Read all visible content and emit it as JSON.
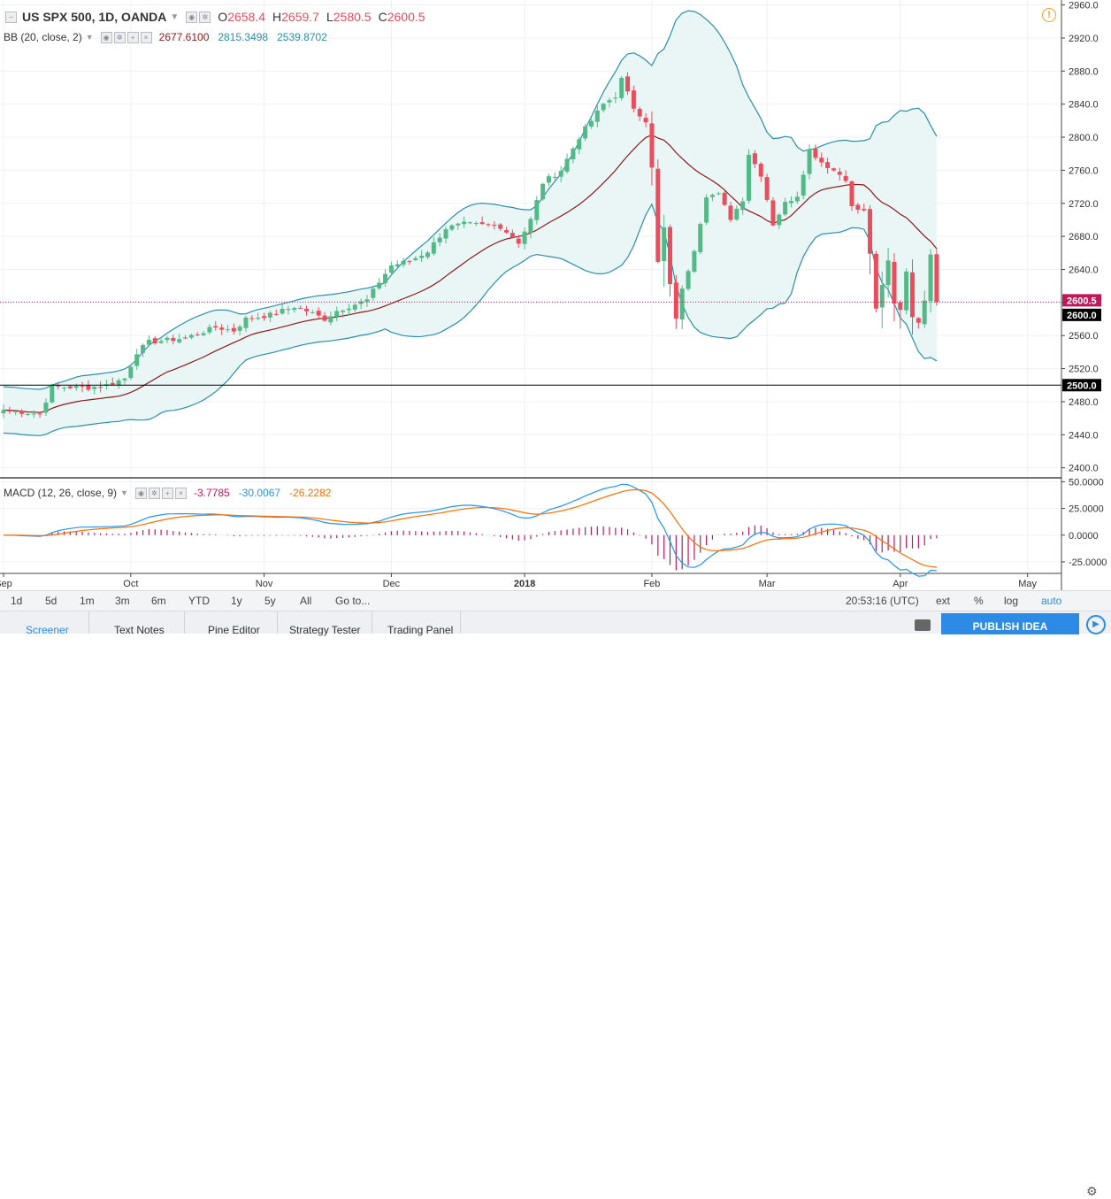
{
  "header": {
    "symbol": "US SPX 500, 1D, OANDA",
    "o_label": "O",
    "o_value": "2658.4",
    "h_label": "H",
    "h_value": "2659.7",
    "l_label": "L",
    "l_value": "2580.5",
    "c_label": "C",
    "c_value": "2600.5"
  },
  "bb_legend": {
    "name": "BB (20, close, 2)",
    "basis": "2677.6100",
    "upper": "2815.3498",
    "lower": "2539.8702"
  },
  "macd_legend": {
    "name": "MACD (12, 26, close, 9)",
    "hist": "-3.7785",
    "macd": "-30.0067",
    "signal": "-26.2282"
  },
  "colors": {
    "up": "#53b987",
    "down": "#eb4d5c",
    "bb_band": "#2a8fa8",
    "bb_basis": "#8b1a1a",
    "bb_fill": "#eaf6f6",
    "macd_line": "#2196f3",
    "signal_line": "#ff6d00",
    "histogram": "#c2185b",
    "price_line": "#c2185b"
  },
  "chart_data": [
    {
      "type": "candlestick",
      "title": "US SPX 500, 1D, OANDA",
      "y_ticks": [
        2400,
        2440,
        2480,
        2520,
        2560,
        2600,
        2640,
        2680,
        2720,
        2760,
        2800,
        2840,
        2880,
        2920,
        2960
      ],
      "y_tick_labels": [
        "2400.0",
        "2440.0",
        "2480.0",
        "2520.0",
        "2560.0",
        "2600.0",
        "2640.0",
        "2680.0",
        "2720.0",
        "2760.0",
        "2800.0",
        "2840.0",
        "2880.0",
        "2920.0",
        "2960.0"
      ],
      "ylim": [
        2390,
        2966
      ],
      "x_labels": [
        "Sep",
        "Oct",
        "Nov",
        "Dec",
        "2018",
        "Feb",
        "Mar",
        "Apr",
        "May"
      ],
      "x_label_index": [
        0,
        21,
        43,
        64,
        86,
        107,
        126,
        148,
        169
      ],
      "x_count": 173,
      "last_price": "2600.5",
      "horizontal_line": "2500.0",
      "horizontal_line_value": 2500,
      "milestones": [
        {
          "i": 0,
          "c": 2470
        },
        {
          "i": 6,
          "c": 2465
        },
        {
          "i": 8,
          "c": 2498
        },
        {
          "i": 14,
          "c": 2497
        },
        {
          "i": 17,
          "c": 2500
        },
        {
          "i": 20,
          "c": 2508
        },
        {
          "i": 22,
          "c": 2540
        },
        {
          "i": 24,
          "c": 2552
        },
        {
          "i": 30,
          "c": 2557
        },
        {
          "i": 35,
          "c": 2570
        },
        {
          "i": 38,
          "c": 2566
        },
        {
          "i": 40,
          "c": 2580
        },
        {
          "i": 44,
          "c": 2585
        },
        {
          "i": 48,
          "c": 2595
        },
        {
          "i": 50,
          "c": 2590
        },
        {
          "i": 53,
          "c": 2580
        },
        {
          "i": 55,
          "c": 2590
        },
        {
          "i": 60,
          "c": 2603
        },
        {
          "i": 62,
          "c": 2625
        },
        {
          "i": 64,
          "c": 2645
        },
        {
          "i": 67,
          "c": 2650
        },
        {
          "i": 70,
          "c": 2662
        },
        {
          "i": 73,
          "c": 2690
        },
        {
          "i": 76,
          "c": 2695
        },
        {
          "i": 82,
          "c": 2692
        },
        {
          "i": 85,
          "c": 2673
        },
        {
          "i": 87,
          "c": 2700
        },
        {
          "i": 89,
          "c": 2745
        },
        {
          "i": 92,
          "c": 2760
        },
        {
          "i": 95,
          "c": 2800
        },
        {
          "i": 99,
          "c": 2840
        },
        {
          "i": 101,
          "c": 2850
        },
        {
          "i": 102,
          "c": 2870
        },
        {
          "i": 104,
          "c": 2836
        },
        {
          "i": 106,
          "c": 2820
        },
        {
          "i": 107,
          "c": 2762
        },
        {
          "i": 108,
          "c": 2648
        },
        {
          "i": 109,
          "c": 2690
        },
        {
          "i": 110,
          "c": 2620
        },
        {
          "i": 111,
          "c": 2582
        },
        {
          "i": 112,
          "c": 2615
        },
        {
          "i": 114,
          "c": 2665
        },
        {
          "i": 116,
          "c": 2730
        },
        {
          "i": 118,
          "c": 2730
        },
        {
          "i": 120,
          "c": 2702
        },
        {
          "i": 122,
          "c": 2725
        },
        {
          "i": 123,
          "c": 2780
        },
        {
          "i": 125,
          "c": 2755
        },
        {
          "i": 127,
          "c": 2695
        },
        {
          "i": 129,
          "c": 2720
        },
        {
          "i": 131,
          "c": 2730
        },
        {
          "i": 133,
          "c": 2785
        },
        {
          "i": 135,
          "c": 2770
        },
        {
          "i": 137,
          "c": 2760
        },
        {
          "i": 139,
          "c": 2750
        },
        {
          "i": 140,
          "c": 2715
        },
        {
          "i": 142,
          "c": 2710
        },
        {
          "i": 143,
          "c": 2660
        },
        {
          "i": 144,
          "c": 2590
        },
        {
          "i": 146,
          "c": 2650
        },
        {
          "i": 147,
          "c": 2600
        },
        {
          "i": 148,
          "c": 2592
        },
        {
          "i": 149,
          "c": 2640
        },
        {
          "i": 150,
          "c": 2580
        },
        {
          "i": 151,
          "c": 2578
        },
        {
          "i": 152,
          "c": 2605
        },
        {
          "i": 153,
          "c": 2660
        },
        {
          "i": 154,
          "c": 2600.5
        }
      ]
    },
    {
      "type": "line",
      "title": "MACD (12, 26, close, 9)",
      "y_ticks": [
        -25,
        0,
        25,
        50
      ],
      "y_tick_labels": [
        "-25.0000",
        "0.0000",
        "25.0000",
        "50.0000"
      ],
      "ylim": [
        -35,
        52
      ]
    }
  ],
  "time_toolbar": {
    "ranges": [
      "1d",
      "5d",
      "1m",
      "3m",
      "6m",
      "YTD",
      "1y",
      "5y",
      "All"
    ],
    "goto": "Go to...",
    "clock": "20:53:16 (UTC)",
    "toggles": [
      "ext",
      "%",
      "log",
      "auto"
    ]
  },
  "bottom_tabs": [
    "Screener",
    "Text Notes",
    "Pine Editor",
    "Strategy Tester",
    "Trading Panel"
  ],
  "publish_button": "PUBLISH IDEA",
  "icons": {
    "alert": "alert-clock-icon",
    "camera": "camera-icon",
    "play": "play-icon",
    "settings": "gear-icon",
    "toggle": "collapse-icon"
  }
}
